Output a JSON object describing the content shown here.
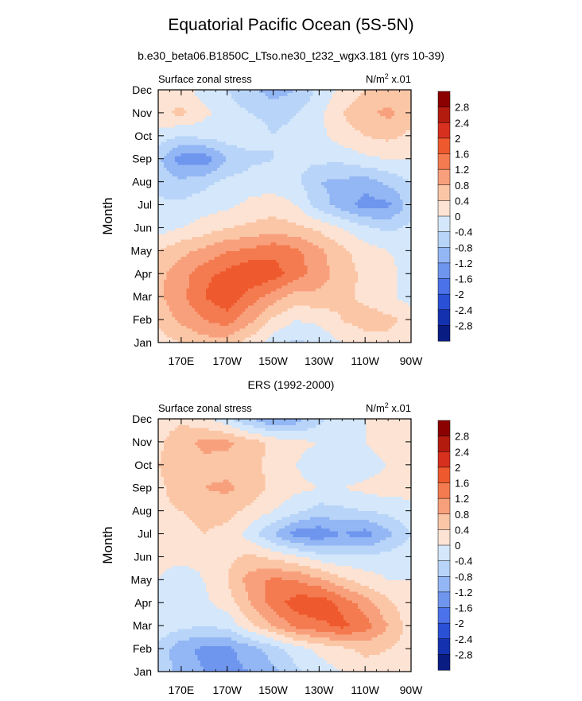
{
  "title": "Equatorial Pacific Ocean (5S-5N)",
  "subtitle": "b.e30_beta06.B1850C_LTso.ne30_t232_wgx3.181 (yrs 10-39)",
  "colorbar": {
    "levels": [
      "2.8",
      "2.4",
      "2",
      "1.6",
      "1.2",
      "0.8",
      "0.4",
      "0",
      "-0.4",
      "-0.8",
      "-1.2",
      "-1.6",
      "-2",
      "-2.4",
      "-2.8"
    ],
    "colors": [
      "#8b0000",
      "#b31b0f",
      "#d7301f",
      "#ee5a2d",
      "#f47b50",
      "#f8a07c",
      "#fbc6a6",
      "#fde3d3",
      "#d4e7fb",
      "#b8d4f8",
      "#93b6f4",
      "#6f96ee",
      "#4b72e8",
      "#2a50d6",
      "#1432b0",
      "#091c82"
    ]
  },
  "chart_data": [
    {
      "type": "heatmap",
      "panel_title": "",
      "left_label": "Surface zonal stress",
      "units": "N/m",
      "units_sup": "2",
      "units_suffix": " x.01",
      "ylabel": "Month",
      "x": [
        "170E",
        "170W",
        "150W",
        "130W",
        "110W",
        "90W"
      ],
      "y": [
        "Jan",
        "Feb",
        "Mar",
        "Apr",
        "May",
        "Jun",
        "Jul",
        "Aug",
        "Sep",
        "Oct",
        "Nov",
        "Dec"
      ],
      "xlim": [
        160,
        270
      ],
      "grid": [
        [
          0.2,
          0.4,
          0.6,
          0.6,
          0.2,
          -0.2,
          -0.5,
          -0.3,
          0.0,
          0.2,
          0.3,
          0.1
        ],
        [
          0.5,
          0.9,
          1.2,
          1.4,
          0.9,
          0.3,
          0.0,
          0.1,
          0.4,
          0.6,
          0.5,
          0.3
        ],
        [
          0.7,
          1.1,
          1.6,
          1.9,
          1.4,
          1.0,
          0.6,
          0.7,
          0.5,
          0.3,
          0.1,
          -0.2
        ],
        [
          0.7,
          1.0,
          1.5,
          1.7,
          2.0,
          1.8,
          1.4,
          1.0,
          0.6,
          0.3,
          0.2,
          -0.3
        ],
        [
          0.4,
          0.7,
          0.9,
          1.2,
          1.3,
          1.5,
          1.3,
          0.9,
          0.5,
          0.2,
          0.0,
          -0.2
        ],
        [
          -0.2,
          0.0,
          0.2,
          0.4,
          0.5,
          0.6,
          0.5,
          0.3,
          0.0,
          -0.3,
          -0.5,
          -0.3
        ],
        [
          -0.3,
          -0.3,
          -0.2,
          -0.1,
          0.1,
          0.2,
          0.0,
          -0.6,
          -1.0,
          -1.4,
          -1.3,
          -0.6
        ],
        [
          -0.6,
          -0.7,
          -0.5,
          -0.3,
          -0.2,
          -0.2,
          -0.3,
          -0.8,
          -0.9,
          -1.0,
          -0.7,
          -0.4
        ],
        [
          -0.7,
          -1.4,
          -1.5,
          -0.8,
          -0.5,
          -0.4,
          -0.3,
          -0.3,
          -0.3,
          -0.1,
          0.0,
          0.0
        ],
        [
          -0.2,
          -0.4,
          -0.3,
          -0.2,
          -0.2,
          -0.4,
          -0.3,
          -0.1,
          0.2,
          0.4,
          0.5,
          0.3
        ],
        [
          0.3,
          0.5,
          0.1,
          -0.2,
          -0.4,
          -0.5,
          -0.4,
          -0.1,
          0.4,
          0.7,
          0.9,
          0.6
        ],
        [
          0.3,
          0.2,
          -0.2,
          -0.4,
          -0.7,
          -1.0,
          -0.8,
          -0.3,
          0.1,
          0.4,
          0.6,
          0.4
        ]
      ]
    },
    {
      "type": "heatmap",
      "panel_title": "ERS (1992-2000)",
      "left_label": "Surface zonal stress",
      "units": "N/m",
      "units_sup": "2",
      "units_suffix": " x.01",
      "ylabel": "Month",
      "x": [
        "170E",
        "170W",
        "150W",
        "130W",
        "110W",
        "90W"
      ],
      "y": [
        "Jan",
        "Feb",
        "Mar",
        "Apr",
        "May",
        "Jun",
        "Jul",
        "Aug",
        "Sep",
        "Oct",
        "Nov",
        "Dec"
      ],
      "xlim": [
        160,
        270
      ],
      "grid": [
        [
          -0.6,
          -0.9,
          -1.2,
          -1.3,
          -1.2,
          -0.9,
          -0.5,
          -0.2,
          0.0,
          0.2,
          0.3,
          0.1
        ],
        [
          -0.5,
          -1.1,
          -1.3,
          -1.3,
          -1.0,
          -0.6,
          -0.2,
          0.1,
          0.3,
          0.5,
          0.4,
          0.2
        ],
        [
          -0.1,
          -0.3,
          -0.4,
          -0.3,
          0.3,
          0.8,
          1.3,
          1.5,
          1.7,
          1.4,
          0.8,
          0.2
        ],
        [
          0.0,
          -0.2,
          -0.1,
          0.2,
          0.8,
          1.4,
          1.8,
          1.9,
          1.5,
          1.0,
          0.5,
          0.1
        ],
        [
          0.0,
          -0.2,
          0.0,
          0.4,
          1.0,
          1.3,
          1.2,
          0.9,
          0.5,
          0.2,
          0.0,
          0.0
        ],
        [
          0.1,
          0.1,
          0.1,
          0.3,
          0.5,
          0.3,
          0.1,
          -0.2,
          -0.3,
          -0.3,
          -0.2,
          -0.1
        ],
        [
          0.2,
          0.3,
          0.4,
          0.3,
          -0.2,
          -0.8,
          -1.4,
          -1.5,
          -1.2,
          -1.4,
          -0.9,
          -0.4
        ],
        [
          0.3,
          0.4,
          0.5,
          0.5,
          0.3,
          0.0,
          -0.3,
          -0.6,
          -0.5,
          -0.4,
          -0.3,
          -0.1
        ],
        [
          0.3,
          0.6,
          0.8,
          0.9,
          0.6,
          0.3,
          0.1,
          0.0,
          0.0,
          0.1,
          0.2,
          0.1
        ],
        [
          0.4,
          0.6,
          0.7,
          0.6,
          0.5,
          0.3,
          0.0,
          -0.2,
          -0.3,
          -0.2,
          0.0,
          0.1
        ],
        [
          0.3,
          0.7,
          0.9,
          0.9,
          0.6,
          0.3,
          0.1,
          0.0,
          -0.1,
          0.0,
          0.2,
          0.2
        ],
        [
          0.2,
          0.3,
          0.1,
          -0.3,
          -0.8,
          -1.2,
          -1.0,
          -0.5,
          -0.2,
          0.0,
          0.3,
          0.3
        ]
      ]
    }
  ]
}
